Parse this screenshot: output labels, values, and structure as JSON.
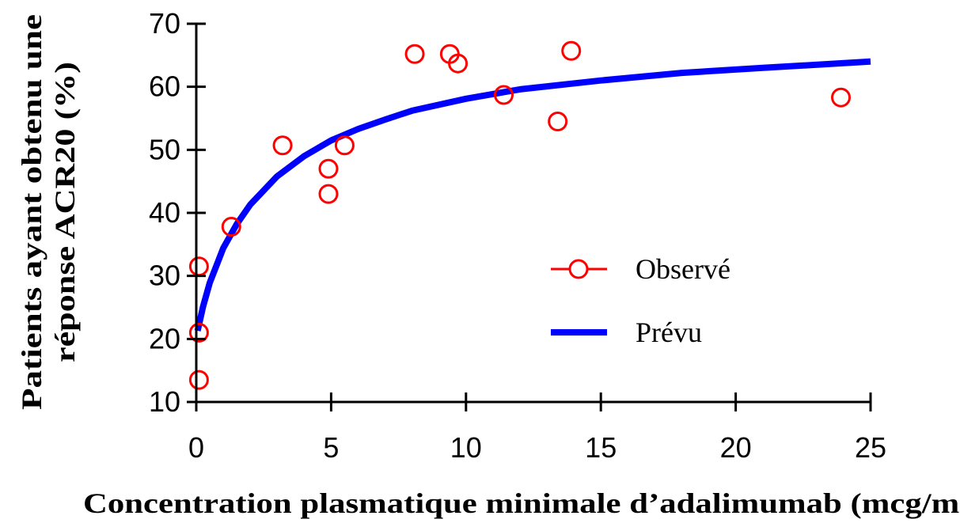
{
  "chart_data": {
    "type": "scatter",
    "xlabel": "Concentration plasmatique minimale d’adalimumab (mcg/mL)",
    "ylabel_lines": [
      "Patients ayant obtenu une",
      "réponse ACR20 (%)"
    ],
    "xlim": [
      0,
      25
    ],
    "ylim": [
      10,
      70
    ],
    "x_ticks": [
      "0",
      "5",
      "10",
      "15",
      "20",
      "25"
    ],
    "y_ticks": [
      "10",
      "20",
      "30",
      "40",
      "50",
      "60",
      "70"
    ],
    "grid": false,
    "legend_position": "right-middle",
    "series": [
      {
        "name": "Observé",
        "kind": "scatter",
        "marker": "open-circle",
        "color": "#ff0000",
        "points": [
          {
            "x": 0.1,
            "y": 31.5
          },
          {
            "x": 0.1,
            "y": 21
          },
          {
            "x": 0.1,
            "y": 13.5
          },
          {
            "x": 1.3,
            "y": 37.8
          },
          {
            "x": 3.2,
            "y": 50.7
          },
          {
            "x": 4.9,
            "y": 47
          },
          {
            "x": 4.9,
            "y": 43
          },
          {
            "x": 5.5,
            "y": 50.7
          },
          {
            "x": 8.1,
            "y": 65.2
          },
          {
            "x": 9.4,
            "y": 65.2
          },
          {
            "x": 9.7,
            "y": 63.7
          },
          {
            "x": 11.4,
            "y": 58.7
          },
          {
            "x": 13.4,
            "y": 54.5
          },
          {
            "x": 13.9,
            "y": 65.7
          },
          {
            "x": 23.9,
            "y": 58.3
          }
        ]
      },
      {
        "name": "Prévu",
        "kind": "line",
        "color": "#0000ff",
        "points": [
          {
            "x": 0.05,
            "y": 21.3
          },
          {
            "x": 0.25,
            "y": 25.1
          },
          {
            "x": 0.5,
            "y": 28.9
          },
          {
            "x": 1,
            "y": 34.4
          },
          {
            "x": 1.5,
            "y": 38.2
          },
          {
            "x": 2,
            "y": 41.3
          },
          {
            "x": 3,
            "y": 45.8
          },
          {
            "x": 4,
            "y": 49.0
          },
          {
            "x": 5,
            "y": 51.5
          },
          {
            "x": 6,
            "y": 53.3
          },
          {
            "x": 7,
            "y": 54.8
          },
          {
            "x": 8,
            "y": 56.2
          },
          {
            "x": 10,
            "y": 58.1
          },
          {
            "x": 12,
            "y": 59.6
          },
          {
            "x": 15,
            "y": 61.0
          },
          {
            "x": 18,
            "y": 62.2
          },
          {
            "x": 21,
            "y": 63.0
          },
          {
            "x": 25,
            "y": 64.0
          }
        ]
      }
    ]
  }
}
